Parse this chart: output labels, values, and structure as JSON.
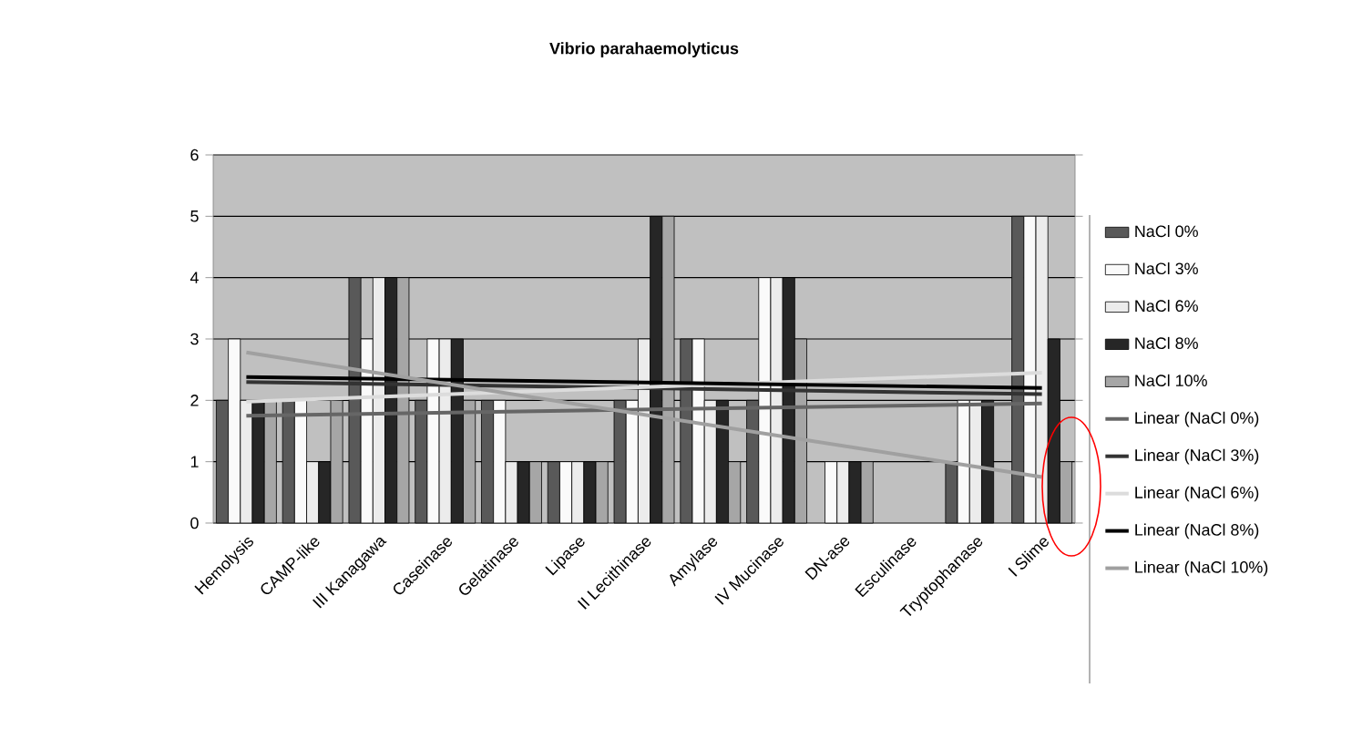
{
  "chart_data": {
    "type": "bar",
    "title": "Vibrio parahaemolyticus",
    "categories": [
      "Hemolysis",
      "CAMP-like",
      "III Kanagawa",
      "Caseinase",
      "Gelatinase",
      "Lipase",
      "II  Lecithinase",
      "Amylase",
      "IV  Mucinase",
      "DN-ase",
      "Esculinase",
      "Tryptophanase",
      "I  Slime"
    ],
    "series": [
      {
        "name": "NaCl 0%",
        "color": "#595959",
        "values": [
          2,
          2,
          4,
          2,
          2,
          1,
          2,
          3,
          2,
          0,
          0,
          1,
          5
        ]
      },
      {
        "name": "NaCl 3%",
        "color": "#fafafa",
        "values": [
          3,
          2,
          3,
          3,
          2,
          1,
          2,
          3,
          4,
          1,
          0,
          2,
          5
        ]
      },
      {
        "name": "NaCl 6%",
        "color": "#ececec",
        "values": [
          2,
          1,
          4,
          3,
          1,
          1,
          3,
          2,
          4,
          1,
          0,
          2,
          5
        ]
      },
      {
        "name": "NaCl 8%",
        "color": "#262626",
        "values": [
          2,
          1,
          4,
          3,
          1,
          1,
          5,
          2,
          4,
          1,
          0,
          2,
          3
        ]
      },
      {
        "name": "NaCl 10%",
        "color": "#a6a6a6",
        "values": [
          2,
          2,
          4,
          2,
          1,
          1,
          5,
          1,
          3,
          1,
          0,
          0,
          1
        ]
      },
      {
        "name": "Linear (NaCl 0%)",
        "type": "line",
        "color": "#666666",
        "values": [
          1.75,
          null,
          null,
          null,
          null,
          null,
          null,
          null,
          null,
          null,
          null,
          null,
          1.95
        ]
      },
      {
        "name": "Linear (NaCl 3%)",
        "type": "line",
        "color": "#333333",
        "values": [
          2.3,
          null,
          null,
          null,
          null,
          null,
          null,
          null,
          null,
          null,
          null,
          null,
          2.1
        ]
      },
      {
        "name": "Linear (NaCl 6%)",
        "type": "line",
        "color": "#dcdcdc",
        "values": [
          1.98,
          null,
          null,
          null,
          null,
          null,
          null,
          null,
          null,
          null,
          null,
          null,
          2.45
        ]
      },
      {
        "name": "Linear (NaCl 8%)",
        "type": "line",
        "color": "#000000",
        "values": [
          2.38,
          null,
          null,
          null,
          null,
          null,
          null,
          null,
          null,
          null,
          null,
          null,
          2.2
        ]
      },
      {
        "name": "Linear (NaCl 10%)",
        "type": "line",
        "color": "#a0a0a0",
        "values": [
          2.78,
          null,
          null,
          null,
          null,
          null,
          null,
          null,
          null,
          null,
          null,
          null,
          0.75
        ]
      }
    ],
    "ylim": [
      0,
      6
    ],
    "yticks": [
      0,
      1,
      2,
      3,
      4,
      5,
      6
    ],
    "grid": "y",
    "legend": "right"
  }
}
